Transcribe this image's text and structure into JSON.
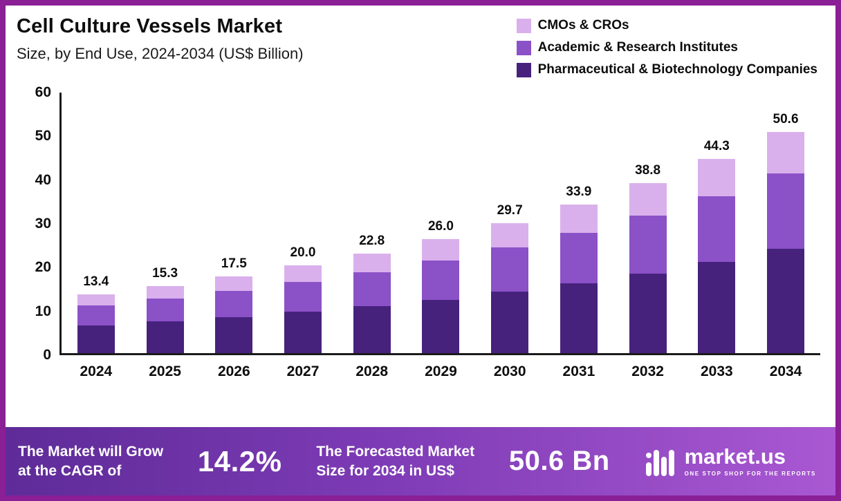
{
  "header": {
    "title": "Cell Culture Vessels Market",
    "subtitle": "Size, by End Use, 2024-2034 (US$ Billion)"
  },
  "legend": {
    "items": [
      {
        "label": "CMOs & CROs",
        "color": "#d9b0ec"
      },
      {
        "label": "Academic & Research Institutes",
        "color": "#8b51c7"
      },
      {
        "label": "Pharmaceutical & Biotechnology Companies",
        "color": "#46227d"
      }
    ]
  },
  "chart_data": {
    "type": "bar",
    "stacked": true,
    "title": "Cell Culture Vessels Market Size, by End Use, 2024-2034 (US$ Billion)",
    "categories": [
      "2024",
      "2025",
      "2026",
      "2027",
      "2028",
      "2029",
      "2030",
      "2031",
      "2032",
      "2033",
      "2034"
    ],
    "totals": [
      13.4,
      15.3,
      17.5,
      20.0,
      22.8,
      26.0,
      29.7,
      33.9,
      38.8,
      44.3,
      50.6
    ],
    "series": [
      {
        "name": "Pharmaceutical & Biotechnology Companies",
        "color": "#46227d",
        "values": [
          6.3,
          7.2,
          8.2,
          9.4,
          10.7,
          12.2,
          14.0,
          15.9,
          18.2,
          20.8,
          23.8
        ]
      },
      {
        "name": "Academic & Research Institutes",
        "color": "#8b51c7",
        "values": [
          4.6,
          5.2,
          6.0,
          6.8,
          7.8,
          8.9,
          10.1,
          11.6,
          13.2,
          15.1,
          17.2
        ]
      },
      {
        "name": "CMOs & CROs",
        "color": "#d9b0ec",
        "values": [
          2.5,
          2.9,
          3.3,
          3.8,
          4.3,
          4.9,
          5.6,
          6.4,
          7.4,
          8.4,
          9.6
        ]
      }
    ],
    "xlabel": "",
    "ylabel": "",
    "yticks": [
      0,
      10,
      20,
      30,
      40,
      50,
      60
    ],
    "ylim": [
      0,
      60
    ],
    "grid": false,
    "legend_position": "top-right",
    "value_label_format": "one-decimal"
  },
  "banner": {
    "cagr_label_line1": "The Market will Grow",
    "cagr_label_line2": "at the CAGR of",
    "cagr_value": "14.2%",
    "forecast_label_line1": "The Forecasted Market",
    "forecast_label_line2": "Size for 2034 in US$",
    "forecast_value": "50.6 Bn",
    "brand": "market.us",
    "brand_tagline": "ONE STOP SHOP FOR THE REPORTS"
  }
}
